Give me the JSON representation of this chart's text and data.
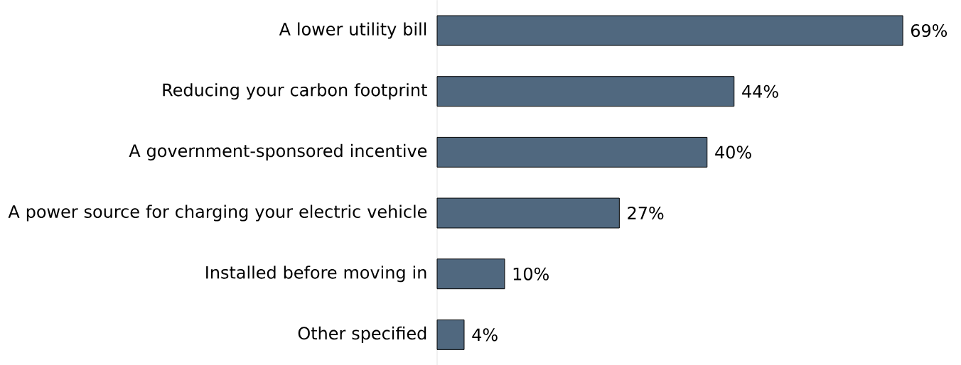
{
  "chart_data": {
    "type": "bar",
    "orientation": "horizontal",
    "categories": [
      "A lower utility bill",
      "Reducing your carbon footprint",
      "A government-sponsored incentive",
      "A power source for charging your electric vehicle",
      "Installed before moving in",
      "Other specified"
    ],
    "values": [
      69,
      44,
      40,
      27,
      10,
      4
    ],
    "value_labels": [
      "69%",
      "44%",
      "40%",
      "27%",
      "10%",
      "4%"
    ],
    "color": "#50687f"
  }
}
